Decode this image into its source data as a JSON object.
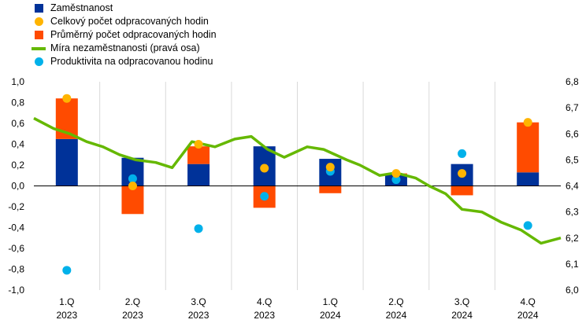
{
  "chart_data": {
    "type": "bar",
    "title": "",
    "categories": [
      [
        "1.Q",
        "2023"
      ],
      [
        "2.Q",
        "2023"
      ],
      [
        "3.Q",
        "2023"
      ],
      [
        "4.Q",
        "2023"
      ],
      [
        "1.Q",
        "2024"
      ],
      [
        "2.Q",
        "2024"
      ],
      [
        "3.Q",
        "2024"
      ],
      [
        "4.Q",
        "2024"
      ]
    ],
    "stacked": true,
    "series": [
      {
        "name": "Zaměstnanost",
        "type": "bar",
        "axis": "left",
        "color": "#003299",
        "values": [
          0.45,
          0.27,
          0.21,
          0.38,
          0.26,
          0.11,
          0.21,
          0.13
        ]
      },
      {
        "name": "Celkový počet odpracovaných hodin",
        "type": "scatter",
        "axis": "left",
        "color": "#FFB400",
        "values": [
          0.84,
          0.0,
          0.4,
          0.17,
          0.18,
          0.12,
          0.12,
          0.61
        ]
      },
      {
        "name": "Průměrný počet odpracovaných hodin",
        "type": "bar",
        "axis": "left",
        "color": "#FF4B00",
        "values": [
          0.39,
          -0.27,
          0.17,
          -0.21,
          -0.07,
          0.01,
          -0.09,
          0.48
        ]
      },
      {
        "name": "Míra nezaměstnanosti (pravá osa)",
        "type": "line",
        "axis": "right",
        "color": "#65B800",
        "x": [
          -0.5,
          -0.2,
          0.05,
          0.3,
          0.55,
          0.8,
          1.05,
          1.35,
          1.6,
          1.9,
          2.25,
          2.55,
          2.8,
          3.05,
          3.3,
          3.65,
          3.9,
          4.25,
          4.45,
          4.75,
          5.0,
          5.3,
          5.5,
          5.75,
          6.0,
          6.3,
          6.6,
          6.9,
          7.2,
          7.5
        ],
        "values": [
          6.66,
          6.62,
          6.6,
          6.57,
          6.55,
          6.52,
          6.5,
          6.49,
          6.47,
          6.57,
          6.55,
          6.58,
          6.59,
          6.54,
          6.51,
          6.55,
          6.54,
          6.5,
          6.48,
          6.44,
          6.45,
          6.43,
          6.4,
          6.37,
          6.31,
          6.3,
          6.26,
          6.23,
          6.18,
          6.2
        ]
      },
      {
        "name": "Produktivita na odpracovanou hodinu",
        "type": "scatter",
        "axis": "left",
        "color": "#00B1EA",
        "values": [
          -0.81,
          0.07,
          -0.41,
          -0.1,
          0.14,
          0.06,
          0.31,
          -0.38
        ]
      }
    ],
    "axes": {
      "left": {
        "min": -1.0,
        "max": 1.0,
        "step": 0.2,
        "tick_labels": [
          "-1,0",
          "-0,8",
          "-0,6",
          "-0,4",
          "-0,2",
          "0,0",
          "0,2",
          "0,4",
          "0,6",
          "0,8",
          "1,0"
        ]
      },
      "right": {
        "min": 6.0,
        "max": 6.8,
        "step": 0.1,
        "tick_labels": [
          "6,0",
          "6,1",
          "6,2",
          "6,3",
          "6,4",
          "6,5",
          "6,6",
          "6,7",
          "6,8"
        ]
      }
    },
    "grid": {
      "vertical": true,
      "horizontal": false
    },
    "legend": {
      "placement": "top-left"
    }
  }
}
